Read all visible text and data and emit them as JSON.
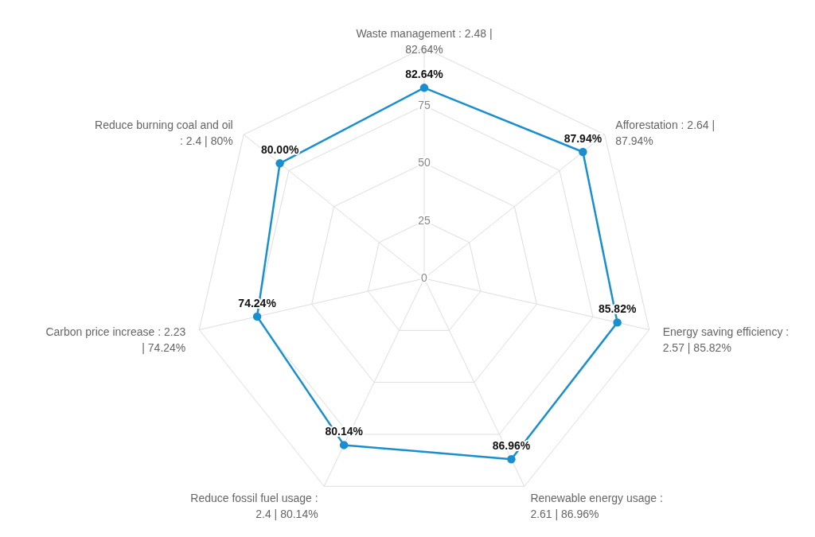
{
  "chart_data": {
    "type": "radar",
    "categories": [
      "Waste management : 2.48 | 82.64%",
      "Afforestation : 2.64 | 87.94%",
      "Energy saving efficiency : 2.57 | 85.82%",
      "Renewable energy usage : 2.61 | 86.96%",
      "Reduce fossil fuel usage : 2.4 | 80.14%",
      "Carbon price increase : 2.23 | 74.24%",
      "Reduce burning coal and oil : 2.4 | 80%"
    ],
    "series": [
      {
        "color": "#1a8fd0",
        "values": [
          82.64,
          87.94,
          85.82,
          86.96,
          80.14,
          74.24,
          80.0
        ],
        "value_labels": [
          "82.64%",
          "87.94%",
          "85.82%",
          "86.96%",
          "80.14%",
          "74.24%",
          "80.00%"
        ]
      }
    ],
    "ylim": [
      0,
      100
    ],
    "yticks": [
      0,
      25,
      50,
      75
    ],
    "grid": true,
    "marker": "circle",
    "line_style": "solid"
  }
}
